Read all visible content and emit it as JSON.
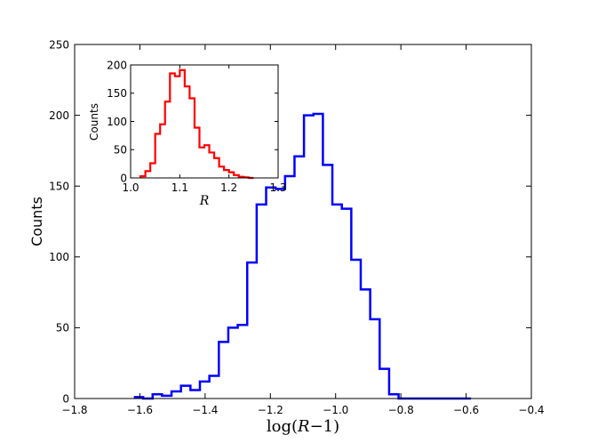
{
  "chart_data": [
    {
      "id": "main",
      "type": "histogram",
      "xlabel_prefix": "log(",
      "xlabel_var": "R",
      "xlabel_suffix": "−1)",
      "ylabel": "Counts",
      "xlim": [
        -1.8,
        -0.4
      ],
      "ylim": [
        0,
        250
      ],
      "xticks": [
        -1.8,
        -1.6,
        -1.4,
        -1.2,
        -1.0,
        -0.8,
        -0.6,
        -0.4
      ],
      "xtick_labels": [
        "−1.8",
        "−1.6",
        "−1.4",
        "−1.2",
        "−1.0",
        "−0.8",
        "−0.6",
        "−0.4"
      ],
      "yticks": [
        0,
        50,
        100,
        150,
        200,
        250
      ],
      "ytick_labels": [
        "0",
        "50",
        "100",
        "150",
        "200",
        "250"
      ],
      "grid": false,
      "series": [
        {
          "color": "#0000ff",
          "style": "step",
          "bin_edges": [
            -1.615,
            -1.59,
            -1.561,
            -1.532,
            -1.503,
            -1.474,
            -1.445,
            -1.416,
            -1.387,
            -1.358,
            -1.329,
            -1.3,
            -1.271,
            -1.242,
            -1.213,
            -1.184,
            -1.155,
            -1.126,
            -1.097,
            -1.068,
            -1.039,
            -1.01,
            -0.981,
            -0.952,
            -0.923,
            -0.894,
            -0.865,
            -0.836,
            -0.807,
            -0.778,
            -0.749,
            -0.72,
            -0.691,
            -0.662,
            -0.633,
            -0.604,
            -0.585
          ],
          "counts": [
            1,
            0,
            3,
            2,
            5,
            9,
            6,
            12,
            16,
            40,
            50,
            52,
            96,
            137,
            149,
            148,
            157,
            171,
            200,
            201,
            165,
            137,
            134,
            98,
            77,
            56,
            21,
            3,
            0,
            0,
            0,
            0,
            0,
            0,
            0,
            0
          ]
        }
      ]
    },
    {
      "id": "inset",
      "type": "histogram",
      "xlabel": "R",
      "ylabel": "Counts",
      "xlim": [
        1.0,
        1.3
      ],
      "ylim": [
        0,
        200
      ],
      "xticks": [
        1.0,
        1.1,
        1.2,
        1.3
      ],
      "xtick_labels": [
        "1.0",
        "1.1",
        "1.2",
        "1.3"
      ],
      "yticks": [
        0,
        50,
        100,
        150,
        200
      ],
      "ytick_labels": [
        "0",
        "50",
        "100",
        "150",
        "200"
      ],
      "grid": false,
      "series": [
        {
          "color": "#ff0000",
          "style": "step",
          "bin_edges": [
            1.02,
            1.03,
            1.04,
            1.05,
            1.06,
            1.07,
            1.08,
            1.09,
            1.1,
            1.11,
            1.12,
            1.13,
            1.14,
            1.15,
            1.16,
            1.17,
            1.18,
            1.19,
            1.2,
            1.21,
            1.22,
            1.23,
            1.24,
            1.25
          ],
          "counts": [
            3,
            12,
            26,
            78,
            95,
            135,
            185,
            180,
            191,
            162,
            141,
            89,
            54,
            58,
            45,
            35,
            20,
            14,
            10,
            5,
            2,
            1,
            0
          ]
        }
      ]
    }
  ]
}
